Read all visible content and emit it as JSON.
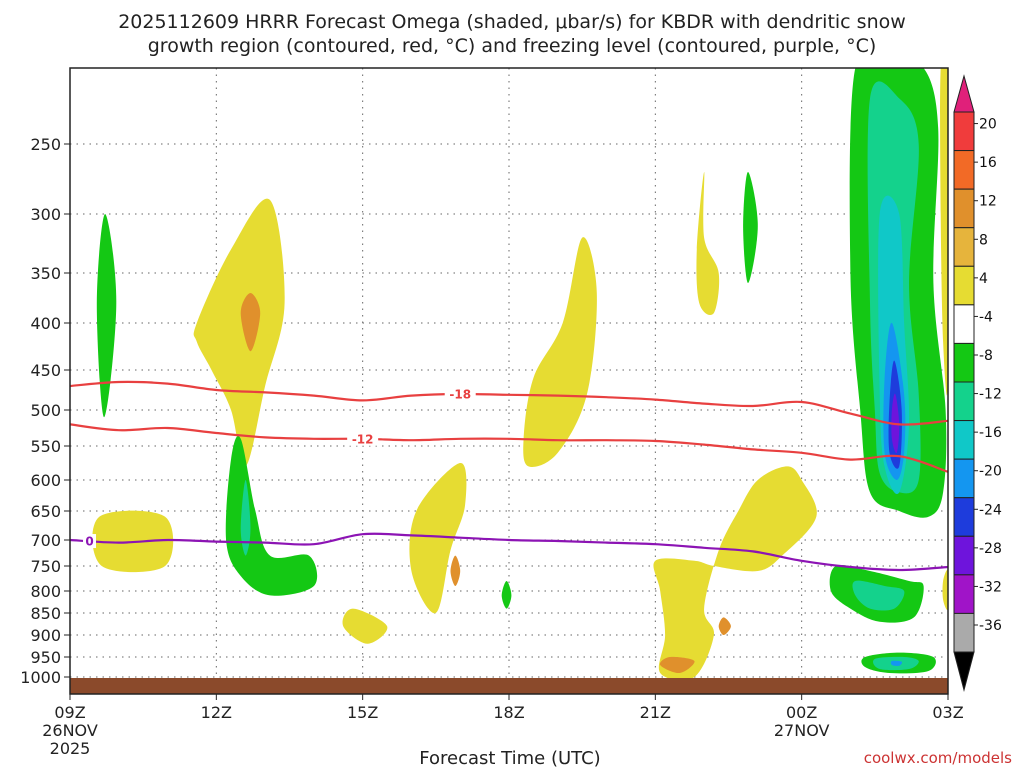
{
  "chart_data": {
    "type": "time-height",
    "title_line1": "2025112609 HRRR Forecast Omega (shaded, μbar/s) for KBDR with dendritic snow",
    "title_line2": "growth region (contoured, red, °C) and freezing level (contoured, purple, °C)",
    "xlabel": "Forecast Time (UTC)",
    "credit": "coolwx.com/models",
    "x_range_hours": [
      0,
      18
    ],
    "x_ticks": [
      {
        "hour": 0,
        "label": "09Z",
        "sub1": "26NOV",
        "sub2": "2025"
      },
      {
        "hour": 3,
        "label": "12Z",
        "sub1": "",
        "sub2": ""
      },
      {
        "hour": 6,
        "label": "15Z",
        "sub1": "",
        "sub2": ""
      },
      {
        "hour": 9,
        "label": "18Z",
        "sub1": "",
        "sub2": ""
      },
      {
        "hour": 12,
        "label": "21Z",
        "sub1": "",
        "sub2": ""
      },
      {
        "hour": 15,
        "label": "00Z",
        "sub1": "27NOV",
        "sub2": ""
      },
      {
        "hour": 18,
        "label": "03Z",
        "sub1": "",
        "sub2": ""
      }
    ],
    "y_levels": [
      "250",
      "300",
      "350",
      "400",
      "450",
      "500",
      "550",
      "600",
      "650",
      "700",
      "750",
      "800",
      "850",
      "900",
      "950",
      "1000"
    ],
    "y_range_hpa": [
      1030,
      200
    ],
    "colorbar": {
      "labels": [
        "20",
        "16",
        "12",
        "8",
        "4",
        "-4",
        "-8",
        "-12",
        "-16",
        "-20",
        "-24",
        "-28",
        "-32",
        "-36"
      ],
      "colors": [
        "#e0207a",
        "#f03c3c",
        "#f26a26",
        "#e0902c",
        "#e6b43c",
        "#e6dc32",
        "#ffffff",
        "#14c814",
        "#14d28c",
        "#10c8c8",
        "#1496f0",
        "#1e3cdc",
        "#6e14dc",
        "#a014c8",
        "#aaaaaa",
        "#000000"
      ]
    },
    "omega_regions": [
      {
        "color": "#14c814",
        "pts": [
          [
            0.7,
            510
          ],
          [
            0.95,
            380
          ],
          [
            0.72,
            300
          ],
          [
            0.55,
            380
          ]
        ]
      },
      {
        "color": "#e6dc32",
        "pts": [
          [
            0.6,
            660
          ],
          [
            1.95,
            660
          ],
          [
            1.95,
            750
          ],
          [
            0.65,
            750
          ]
        ]
      },
      {
        "color": "#e6dc32",
        "pts": [
          [
            2.6,
            400
          ],
          [
            3.3,
            330
          ],
          [
            4.1,
            290
          ],
          [
            4.4,
            380
          ],
          [
            4.0,
            470
          ],
          [
            3.6,
            580
          ],
          [
            3.3,
            500
          ],
          [
            2.9,
            450
          ],
          [
            2.6,
            420
          ]
        ]
      },
      {
        "color": "#e0902c",
        "pts": [
          [
            3.7,
            370
          ],
          [
            3.9,
            390
          ],
          [
            3.7,
            430
          ],
          [
            3.5,
            390
          ]
        ]
      },
      {
        "color": "#14c814",
        "pts": [
          [
            3.5,
            540
          ],
          [
            3.8,
            650
          ],
          [
            4.1,
            730
          ],
          [
            4.9,
            730
          ],
          [
            5.0,
            790
          ],
          [
            4.1,
            810
          ],
          [
            3.5,
            770
          ],
          [
            3.2,
            700
          ],
          [
            3.3,
            570
          ]
        ]
      },
      {
        "color": "#14d28c",
        "pts": [
          [
            3.6,
            600
          ],
          [
            3.7,
            680
          ],
          [
            3.6,
            730
          ],
          [
            3.5,
            680
          ]
        ]
      },
      {
        "color": "#e6dc32",
        "pts": [
          [
            5.8,
            840
          ],
          [
            6.5,
            880
          ],
          [
            6.1,
            920
          ],
          [
            5.6,
            880
          ]
        ]
      },
      {
        "color": "#e6dc32",
        "pts": [
          [
            8.0,
            575
          ],
          [
            8.1,
            640
          ],
          [
            7.8,
            720
          ],
          [
            7.5,
            850
          ],
          [
            7.0,
            760
          ],
          [
            7.1,
            650
          ]
        ]
      },
      {
        "color": "#e0902c",
        "pts": [
          [
            7.9,
            730
          ],
          [
            8.0,
            760
          ],
          [
            7.9,
            790
          ],
          [
            7.8,
            760
          ]
        ]
      },
      {
        "color": "#14c814",
        "pts": [
          [
            8.95,
            780
          ],
          [
            9.05,
            810
          ],
          [
            8.95,
            840
          ],
          [
            8.85,
            810
          ]
        ]
      },
      {
        "color": "#e6dc32",
        "pts": [
          [
            9.3,
            540
          ],
          [
            9.5,
            460
          ],
          [
            10.1,
            400
          ],
          [
            10.5,
            320
          ],
          [
            10.8,
            370
          ],
          [
            10.6,
            480
          ],
          [
            10.0,
            560
          ],
          [
            9.4,
            580
          ]
        ]
      },
      {
        "color": "#e6dc32",
        "pts": [
          [
            13.0,
            320
          ],
          [
            13.3,
            350
          ],
          [
            13.2,
            390
          ],
          [
            12.9,
            380
          ],
          [
            12.85,
            330
          ],
          [
            13.0,
            270
          ]
        ]
      },
      {
        "color": "#14c814",
        "pts": [
          [
            13.9,
            270
          ],
          [
            14.1,
            310
          ],
          [
            13.9,
            360
          ],
          [
            13.8,
            310
          ]
        ]
      },
      {
        "color": "#e6dc32",
        "pts": [
          [
            12.0,
            740
          ],
          [
            12.1,
            800
          ],
          [
            12.2,
            900
          ],
          [
            12.1,
            990
          ],
          [
            12.8,
            1000
          ],
          [
            13.2,
            900
          ],
          [
            13.0,
            840
          ],
          [
            13.3,
            720
          ],
          [
            13.7,
            650
          ],
          [
            14.1,
            600
          ],
          [
            14.7,
            580
          ],
          [
            15.0,
            600
          ],
          [
            15.3,
            660
          ],
          [
            14.6,
            730
          ],
          [
            14.1,
            760
          ],
          [
            13.2,
            750
          ],
          [
            12.8,
            740
          ]
        ]
      },
      {
        "color": "#e0902c",
        "pts": [
          [
            12.3,
            950
          ],
          [
            12.8,
            960
          ],
          [
            12.5,
            990
          ],
          [
            12.1,
            970
          ]
        ]
      },
      {
        "color": "#e0902c",
        "pts": [
          [
            13.4,
            860
          ],
          [
            13.55,
            880
          ],
          [
            13.4,
            900
          ],
          [
            13.3,
            880
          ]
        ]
      },
      {
        "color": "#14c814",
        "pts": [
          [
            16.1,
            200
          ],
          [
            16.9,
            200
          ],
          [
            17.5,
            200
          ],
          [
            17.8,
            240
          ],
          [
            17.7,
            360
          ],
          [
            17.95,
            500
          ],
          [
            17.9,
            620
          ],
          [
            17.6,
            660
          ],
          [
            17.0,
            650
          ],
          [
            16.4,
            620
          ],
          [
            16.2,
            500
          ],
          [
            16.0,
            350
          ]
        ]
      },
      {
        "color": "#14d28c",
        "pts": [
          [
            16.4,
            220
          ],
          [
            17.0,
            220
          ],
          [
            17.4,
            250
          ],
          [
            17.2,
            360
          ],
          [
            17.4,
            480
          ],
          [
            17.4,
            600
          ],
          [
            17.0,
            620
          ],
          [
            16.6,
            590
          ],
          [
            16.5,
            500
          ],
          [
            16.4,
            380
          ]
        ]
      },
      {
        "color": "#10c8c8",
        "pts": [
          [
            16.6,
            300
          ],
          [
            17.0,
            300
          ],
          [
            17.1,
            400
          ],
          [
            17.2,
            520
          ],
          [
            17.0,
            620
          ],
          [
            16.7,
            580
          ],
          [
            16.6,
            480
          ]
        ]
      },
      {
        "color": "#1496f0",
        "pts": [
          [
            16.85,
            400
          ],
          [
            17.1,
            480
          ],
          [
            17.1,
            560
          ],
          [
            16.95,
            600
          ],
          [
            16.7,
            560
          ],
          [
            16.7,
            460
          ]
        ]
      },
      {
        "color": "#1e3cdc",
        "pts": [
          [
            16.9,
            440
          ],
          [
            17.05,
            500
          ],
          [
            17.0,
            580
          ],
          [
            16.8,
            560
          ],
          [
            16.8,
            490
          ]
        ]
      },
      {
        "color": "#6e14dc",
        "pts": [
          [
            16.92,
            480
          ],
          [
            17.0,
            520
          ],
          [
            16.95,
            560
          ],
          [
            16.85,
            540
          ],
          [
            16.85,
            500
          ]
        ]
      },
      {
        "color": "#14c814",
        "pts": [
          [
            15.7,
            750
          ],
          [
            16.4,
            760
          ],
          [
            17.2,
            780
          ],
          [
            17.5,
            790
          ],
          [
            17.3,
            860
          ],
          [
            16.6,
            870
          ],
          [
            16.0,
            840
          ],
          [
            15.6,
            800
          ]
        ]
      },
      {
        "color": "#14d28c",
        "pts": [
          [
            16.1,
            780
          ],
          [
            16.7,
            790
          ],
          [
            17.1,
            800
          ],
          [
            16.9,
            840
          ],
          [
            16.4,
            840
          ],
          [
            16.1,
            810
          ]
        ]
      },
      {
        "color": "#14c814",
        "pts": [
          [
            16.3,
            950
          ],
          [
            17.0,
            940
          ],
          [
            17.7,
            950
          ],
          [
            17.6,
            985
          ],
          [
            16.8,
            990
          ],
          [
            16.3,
            975
          ]
        ]
      },
      {
        "color": "#14d28c",
        "pts": [
          [
            16.5,
            955
          ],
          [
            17.1,
            950
          ],
          [
            17.4,
            960
          ],
          [
            17.2,
            980
          ],
          [
            16.6,
            980
          ]
        ]
      },
      {
        "color": "#1496f0",
        "pts": [
          [
            16.85,
            960
          ],
          [
            17.05,
            962
          ],
          [
            17.0,
            972
          ],
          [
            16.85,
            970
          ]
        ]
      },
      {
        "color": "#e6dc32",
        "pts": [
          [
            17.85,
            200
          ],
          [
            18.0,
            200
          ],
          [
            18.0,
            460
          ],
          [
            17.9,
            420
          ],
          [
            17.85,
            300
          ]
        ]
      },
      {
        "color": "#e6dc32",
        "pts": [
          [
            17.9,
            780
          ],
          [
            18.0,
            760
          ],
          [
            18.0,
            840
          ],
          [
            17.9,
            820
          ]
        ]
      }
    ],
    "contours": [
      {
        "name": "dgz-minus-18",
        "label": "-18",
        "color": "#e84040",
        "label_at": 8.0,
        "pts": [
          [
            0,
            470
          ],
          [
            1,
            465
          ],
          [
            2,
            467
          ],
          [
            3,
            475
          ],
          [
            4,
            478
          ],
          [
            5,
            482
          ],
          [
            6,
            488
          ],
          [
            7,
            482
          ],
          [
            8,
            480
          ],
          [
            9,
            481
          ],
          [
            10,
            482
          ],
          [
            11,
            484
          ],
          [
            12,
            487
          ],
          [
            13,
            492
          ],
          [
            14,
            495
          ],
          [
            15,
            490
          ],
          [
            16,
            505
          ],
          [
            17,
            520
          ],
          [
            18,
            515
          ]
        ]
      },
      {
        "name": "dgz-minus-12",
        "label": "-12",
        "color": "#e84040",
        "label_at": 6.0,
        "pts": [
          [
            0,
            520
          ],
          [
            1,
            528
          ],
          [
            2,
            525
          ],
          [
            3,
            532
          ],
          [
            4,
            538
          ],
          [
            5,
            540
          ],
          [
            6,
            540
          ],
          [
            7,
            542
          ],
          [
            8,
            540
          ],
          [
            9,
            540
          ],
          [
            10,
            542
          ],
          [
            11,
            542
          ],
          [
            12,
            543
          ],
          [
            13,
            548
          ],
          [
            14,
            555
          ],
          [
            15,
            560
          ],
          [
            16,
            570
          ],
          [
            17,
            565
          ],
          [
            18,
            588
          ]
        ]
      },
      {
        "name": "freezing-level-0",
        "label": "0",
        "color": "#8c14b4",
        "label_at": 0.4,
        "pts": [
          [
            0,
            700
          ],
          [
            1,
            705
          ],
          [
            2,
            700
          ],
          [
            3,
            703
          ],
          [
            4,
            705
          ],
          [
            5,
            708
          ],
          [
            6,
            690
          ],
          [
            7,
            692
          ],
          [
            8,
            696
          ],
          [
            9,
            700
          ],
          [
            10,
            702
          ],
          [
            11,
            705
          ],
          [
            12,
            708
          ],
          [
            13,
            715
          ],
          [
            14,
            722
          ],
          [
            15,
            740
          ],
          [
            16,
            752
          ],
          [
            17,
            758
          ],
          [
            18,
            752
          ]
        ]
      }
    ],
    "ground_fill_color": "#8b4a2b"
  }
}
